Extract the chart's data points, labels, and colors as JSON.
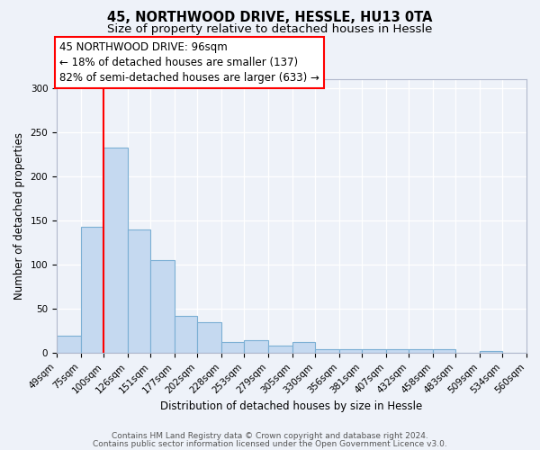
{
  "title": "45, NORTHWOOD DRIVE, HESSLE, HU13 0TA",
  "subtitle": "Size of property relative to detached houses in Hessle",
  "xlabel": "Distribution of detached houses by size in Hessle",
  "ylabel": "Number of detached properties",
  "bin_labels": [
    "49sqm",
    "75sqm",
    "100sqm",
    "126sqm",
    "151sqm",
    "177sqm",
    "202sqm",
    "228sqm",
    "253sqm",
    "279sqm",
    "305sqm",
    "330sqm",
    "356sqm",
    "381sqm",
    "407sqm",
    "432sqm",
    "458sqm",
    "483sqm",
    "509sqm",
    "534sqm",
    "560sqm"
  ],
  "bin_edges": [
    49,
    75,
    100,
    126,
    151,
    177,
    202,
    228,
    253,
    279,
    305,
    330,
    356,
    381,
    407,
    432,
    458,
    483,
    509,
    534,
    560
  ],
  "bar_heights": [
    20,
    143,
    233,
    140,
    105,
    42,
    35,
    13,
    15,
    9,
    13,
    4,
    4,
    4,
    4,
    4,
    4,
    0,
    2,
    0
  ],
  "bar_color": "#c5d9f0",
  "bar_edge_color": "#7bafd4",
  "vline_x": 100,
  "vline_color": "red",
  "annotation_box_text": "45 NORTHWOOD DRIVE: 96sqm\n← 18% of detached houses are smaller (137)\n82% of semi-detached houses are larger (633) →",
  "ylim": [
    0,
    310
  ],
  "yticks": [
    0,
    50,
    100,
    150,
    200,
    250,
    300
  ],
  "background_color": "#eef2f9",
  "plot_background": "#eef2f9",
  "footer_line1": "Contains HM Land Registry data © Crown copyright and database right 2024.",
  "footer_line2": "Contains public sector information licensed under the Open Government Licence v3.0.",
  "title_fontsize": 10.5,
  "subtitle_fontsize": 9.5,
  "axis_label_fontsize": 8.5,
  "tick_fontsize": 7.5,
  "annotation_fontsize": 8.5,
  "footer_fontsize": 6.5
}
